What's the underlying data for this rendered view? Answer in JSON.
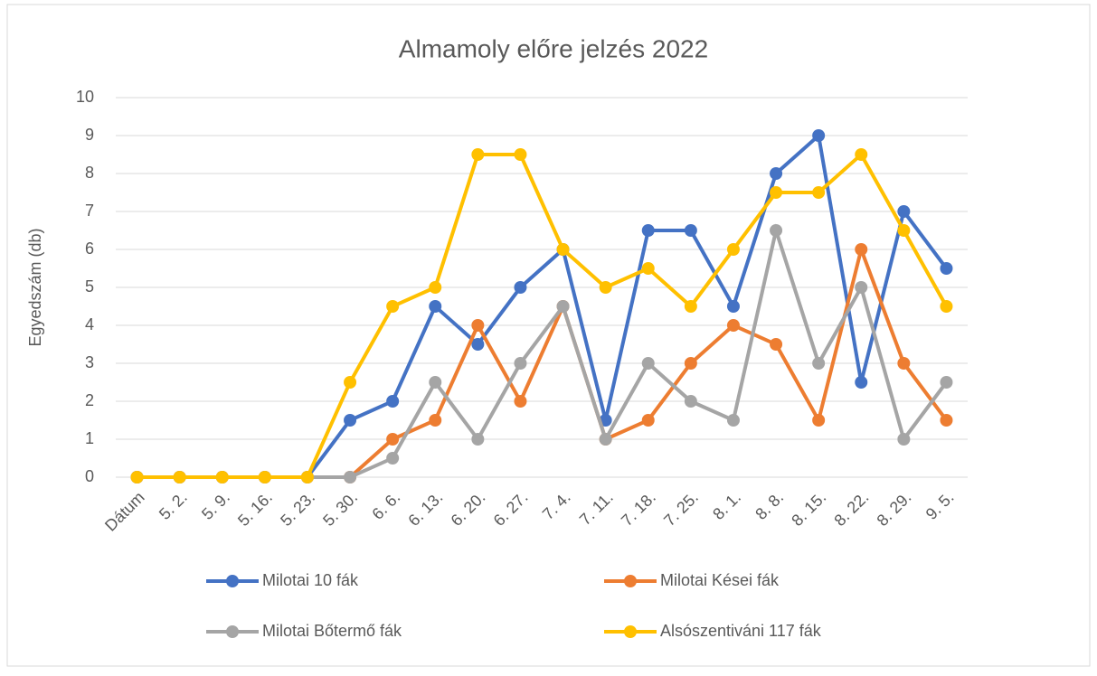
{
  "chart_data": {
    "type": "line",
    "title": "Almamoly előre jelzés 2022",
    "y_label": "Egyedszám (db)",
    "categories": [
      "Dátum",
      "5. 2.",
      "5. 9.",
      "5. 16.",
      "5. 23.",
      "5. 30.",
      "6. 6.",
      "6. 13.",
      "6. 20.",
      "6. 27.",
      "7. 4.",
      "7. 11.",
      "7. 18.",
      "7. 25.",
      "8. 1.",
      "8. 8.",
      "8. 15.",
      "8. 22.",
      "8. 29.",
      "9. 5."
    ],
    "series": [
      {
        "name": "Milotai 10 fák",
        "color": "#4472c4",
        "values": [
          0,
          0,
          0,
          0,
          0,
          1.5,
          2,
          4.5,
          3.5,
          5,
          6,
          1.5,
          6.5,
          6.5,
          4.5,
          8,
          9,
          2.5,
          7,
          5.5
        ]
      },
      {
        "name": "Milotai Kései fák",
        "color": "#ed7d31",
        "values": [
          0,
          0,
          0,
          0,
          0,
          0,
          1,
          1.5,
          4,
          2,
          4.5,
          1,
          1.5,
          3,
          4,
          3.5,
          1.5,
          6,
          3,
          1.5
        ]
      },
      {
        "name": "Milotai Bőtermő fák",
        "color": "#a5a5a5",
        "values": [
          0,
          0,
          0,
          0,
          0,
          0,
          0.5,
          2.5,
          1,
          3,
          4.5,
          1,
          3,
          2,
          1.5,
          6.5,
          3,
          5,
          1,
          2.5
        ]
      },
      {
        "name": "Alsószentiváni 117 fák",
        "color": "#ffc000",
        "values": [
          0,
          0,
          0,
          0,
          0,
          2.5,
          4.5,
          5,
          8.5,
          8.5,
          6,
          5,
          5.5,
          4.5,
          6,
          7.5,
          7.5,
          8.5,
          6.5,
          4.5
        ]
      }
    ],
    "ylim": [
      0,
      10
    ],
    "yticks": [
      0,
      1,
      2,
      3,
      4,
      5,
      6,
      7,
      8,
      9,
      10
    ],
    "grid": true,
    "legend": "bottom"
  }
}
